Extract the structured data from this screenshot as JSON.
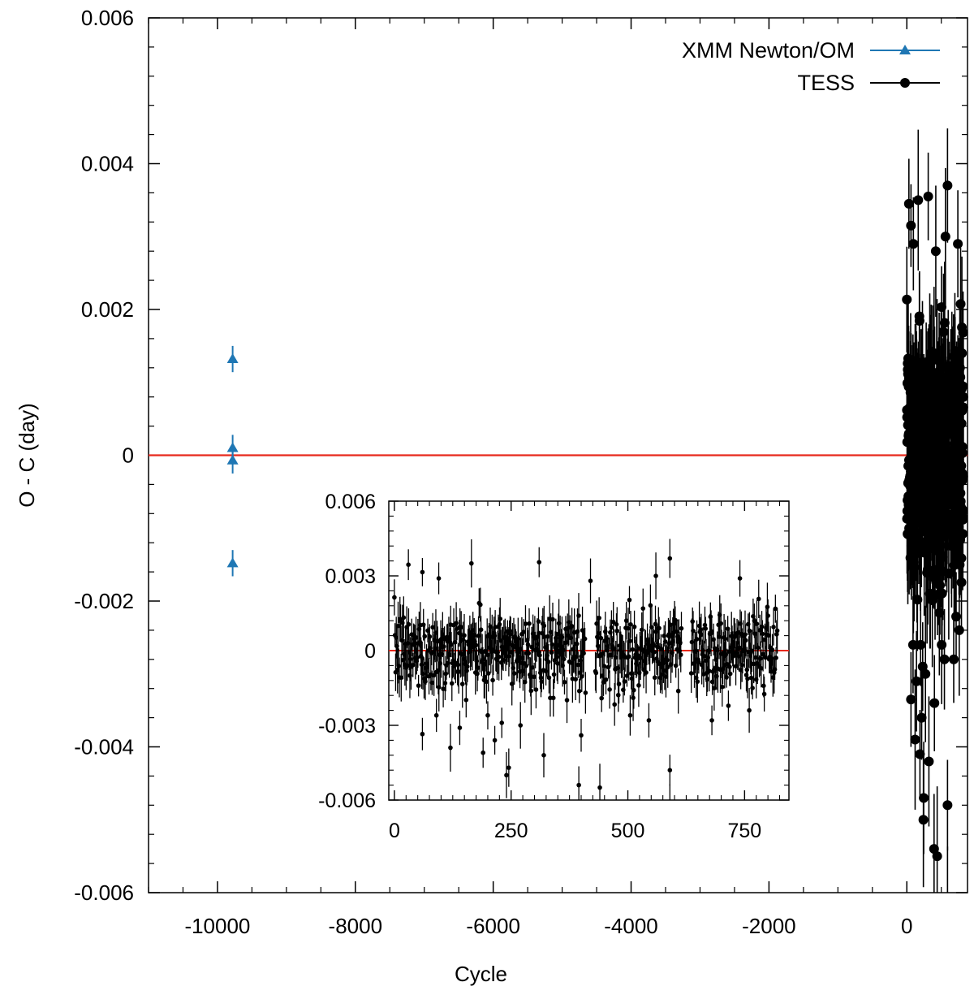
{
  "chart_data": {
    "type": "scatter",
    "main": {
      "xlabel": "Cycle",
      "ylabel": "O - C (day)",
      "xlim": [
        -11000,
        880
      ],
      "ylim": [
        -0.006,
        0.006
      ],
      "x_ticks": [
        -10000,
        -8000,
        -6000,
        -4000,
        -2000,
        0
      ],
      "x_tick_labels": [
        "-10000",
        "-8000",
        "-6000",
        "-4000",
        "-2000",
        "0"
      ],
      "y_ticks": [
        -0.006,
        -0.004,
        -0.002,
        0,
        0.002,
        0.004,
        0.006
      ],
      "y_tick_labels": [
        "-0.006",
        "-0.004",
        "-0.002",
        "0",
        "0.002",
        "0.004",
        "0.006"
      ],
      "reference_line": {
        "y": 0,
        "color": "#e8291c"
      },
      "legend_position": "top-right",
      "series": [
        {
          "name": "XMM Newton/OM",
          "marker": "triangle",
          "color": "#1f77b4",
          "x": [
            -9780,
            -9780,
            -9780,
            -9780
          ],
          "y": [
            0.00132,
            0.0001,
            -7e-05,
            -0.00148
          ],
          "yerr": [
            0.00018,
            0.00018,
            0.00018,
            0.00018
          ]
        },
        {
          "name": "TESS",
          "marker": "circle",
          "color": "#000000",
          "x_range": [
            0,
            820
          ],
          "n_points": 620,
          "gaps": [
            [
              410,
              430
            ],
            [
              615,
              635
            ]
          ],
          "y_spread": 0.0014,
          "y_mean": 0,
          "yerr_typical": 0.0007,
          "outliers": [
            {
              "x": 30,
              "y": 0.00345
            },
            {
              "x": 60,
              "y": 0.00315
            },
            {
              "x": 95,
              "y": 0.0029
            },
            {
              "x": 165,
              "y": 0.0035
            },
            {
              "x": 310,
              "y": 0.00355
            },
            {
              "x": 590,
              "y": 0.0037
            },
            {
              "x": 560,
              "y": 0.003
            },
            {
              "x": 740,
              "y": 0.0029
            },
            {
              "x": 420,
              "y": 0.0028
            },
            {
              "x": 60,
              "y": -0.00335
            },
            {
              "x": 90,
              "y": -0.0026
            },
            {
              "x": 120,
              "y": -0.0039
            },
            {
              "x": 140,
              "y": -0.0031
            },
            {
              "x": 190,
              "y": -0.0041
            },
            {
              "x": 215,
              "y": -0.0036
            },
            {
              "x": 240,
              "y": -0.005
            },
            {
              "x": 245,
              "y": -0.0047
            },
            {
              "x": 270,
              "y": -0.003
            },
            {
              "x": 320,
              "y": -0.0042
            },
            {
              "x": 395,
              "y": -0.0054
            },
            {
              "x": 400,
              "y": -0.0034
            },
            {
              "x": 440,
              "y": -0.0055
            },
            {
              "x": 590,
              "y": -0.0048
            },
            {
              "x": 590,
              "y": -0.0061
            },
            {
              "x": 680,
              "y": -0.0028
            },
            {
              "x": 760,
              "y": -0.0024
            },
            {
              "x": 200,
              "y": -0.0026
            },
            {
              "x": 505,
              "y": -0.0026
            },
            {
              "x": 230,
              "y": -0.0029
            },
            {
              "x": 545,
              "y": -0.0028
            }
          ]
        }
      ]
    },
    "inset": {
      "xlim": [
        -12,
        845
      ],
      "ylim": [
        -0.006,
        0.006
      ],
      "x_ticks": [
        0,
        250,
        500,
        750
      ],
      "x_tick_labels": [
        "0",
        "250",
        "500",
        "750"
      ],
      "y_ticks": [
        -0.006,
        -0.003,
        0,
        0.003,
        0.006
      ],
      "y_tick_labels": [
        "-0.006",
        "-0.003",
        "0",
        "0.003",
        "0.006"
      ],
      "reference_line": {
        "y": 0,
        "color": "#e8291c"
      },
      "series_ref": "TESS"
    }
  }
}
